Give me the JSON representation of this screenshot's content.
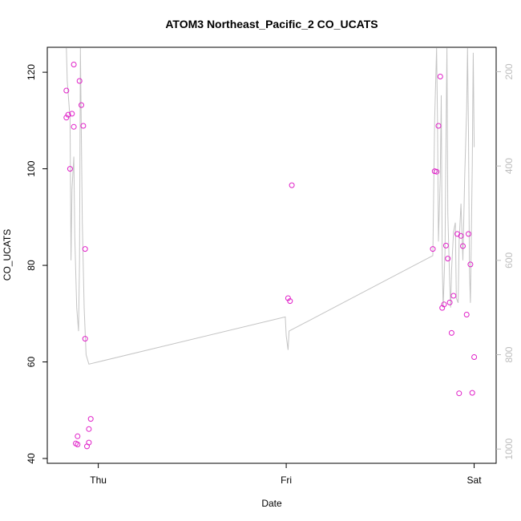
{
  "chart_data": {
    "type": "scatter",
    "title": "ATOM3 Northeast_Pacific_2 CO_UCATS",
    "xlabel": "Date",
    "ylabel": "CO_UCATS",
    "x_ticks": [
      {
        "label": "Thu",
        "x": 0.0
      },
      {
        "label": "Fri",
        "x": 1.0
      },
      {
        "label": "Sat",
        "x": 2.0
      }
    ],
    "xlim": [
      -0.25,
      2.1
    ],
    "ylim": [
      40,
      125
    ],
    "y_ticks": [
      40,
      60,
      80,
      100,
      120
    ],
    "right_axis": {
      "note": "secondary axis (pressure, reversed), grey",
      "ylim": [
        1020,
        150
      ],
      "ticks": [
        200,
        400,
        600,
        800,
        1000
      ]
    },
    "grid": false,
    "colors": {
      "points": "#e020c8",
      "line": "#c4c4c4",
      "right_axis": "#bdbdbd"
    },
    "series": [
      {
        "kind": "points",
        "axis": "left",
        "values": [
          [
            -0.17,
            116.2
          ],
          [
            -0.17,
            110.6
          ],
          [
            -0.16,
            111.2
          ],
          [
            -0.15,
            100.0
          ],
          [
            -0.14,
            111.4
          ],
          [
            -0.13,
            108.7
          ],
          [
            -0.13,
            121.6
          ],
          [
            -0.12,
            43.1
          ],
          [
            -0.11,
            44.6
          ],
          [
            -0.11,
            42.9
          ],
          [
            -0.1,
            118.2
          ],
          [
            -0.09,
            113.2
          ],
          [
            -0.08,
            108.9
          ],
          [
            -0.07,
            83.4
          ],
          [
            -0.07,
            64.8
          ],
          [
            -0.06,
            42.5
          ],
          [
            -0.05,
            43.3
          ],
          [
            -0.05,
            46.1
          ],
          [
            -0.04,
            48.2
          ],
          [
            1.01,
            73.2
          ],
          [
            1.02,
            72.6
          ],
          [
            1.03,
            96.6
          ],
          [
            1.78,
            83.4
          ],
          [
            1.79,
            99.5
          ],
          [
            1.8,
            99.4
          ],
          [
            1.81,
            108.9
          ],
          [
            1.82,
            119.1
          ],
          [
            1.83,
            71.2
          ],
          [
            1.84,
            71.9
          ],
          [
            1.85,
            84.1
          ],
          [
            1.86,
            81.4
          ],
          [
            1.87,
            72.3
          ],
          [
            1.88,
            66.0
          ],
          [
            1.89,
            73.7
          ],
          [
            1.91,
            86.5
          ],
          [
            1.92,
            53.5
          ],
          [
            1.93,
            86.1
          ],
          [
            1.94,
            84.0
          ],
          [
            1.96,
            69.8
          ],
          [
            1.97,
            86.5
          ],
          [
            1.98,
            80.2
          ],
          [
            1.99,
            53.6
          ],
          [
            2.0,
            61.0
          ]
        ]
      },
      {
        "kind": "line",
        "axis": "right",
        "values": [
          [
            -0.17,
            150
          ],
          [
            -0.165,
            220
          ],
          [
            -0.15,
            300
          ],
          [
            -0.145,
            600
          ],
          [
            -0.14,
            450
          ],
          [
            -0.13,
            380
          ],
          [
            -0.125,
            550
          ],
          [
            -0.115,
            700
          ],
          [
            -0.105,
            750
          ],
          [
            -0.1,
            600
          ],
          [
            -0.095,
            150
          ],
          [
            -0.085,
            520
          ],
          [
            -0.075,
            700
          ],
          [
            -0.065,
            800
          ],
          [
            -0.05,
            820
          ],
          [
            0.995,
            720
          ],
          [
            1.0,
            760
          ],
          [
            1.01,
            790
          ],
          [
            1.015,
            750
          ],
          [
            1.78,
            590
          ],
          [
            1.79,
            300
          ],
          [
            1.8,
            150
          ],
          [
            1.805,
            300
          ],
          [
            1.81,
            560
          ],
          [
            1.82,
            420
          ],
          [
            1.825,
            250
          ],
          [
            1.83,
            600
          ],
          [
            1.835,
            700
          ],
          [
            1.845,
            580
          ],
          [
            1.85,
            350
          ],
          [
            1.855,
            150
          ],
          [
            1.86,
            500
          ],
          [
            1.87,
            650
          ],
          [
            1.875,
            700
          ],
          [
            1.88,
            620
          ],
          [
            1.89,
            540
          ],
          [
            1.9,
            520
          ],
          [
            1.905,
            680
          ],
          [
            1.915,
            690
          ],
          [
            1.92,
            560
          ],
          [
            1.93,
            480
          ],
          [
            1.94,
            600
          ],
          [
            1.95,
            420
          ],
          [
            1.96,
            280
          ],
          [
            1.965,
            150
          ],
          [
            1.97,
            330
          ],
          [
            1.975,
            620
          ],
          [
            1.98,
            690
          ],
          [
            1.99,
            400
          ],
          [
            1.995,
            160
          ],
          [
            2.0,
            360
          ]
        ]
      }
    ]
  }
}
